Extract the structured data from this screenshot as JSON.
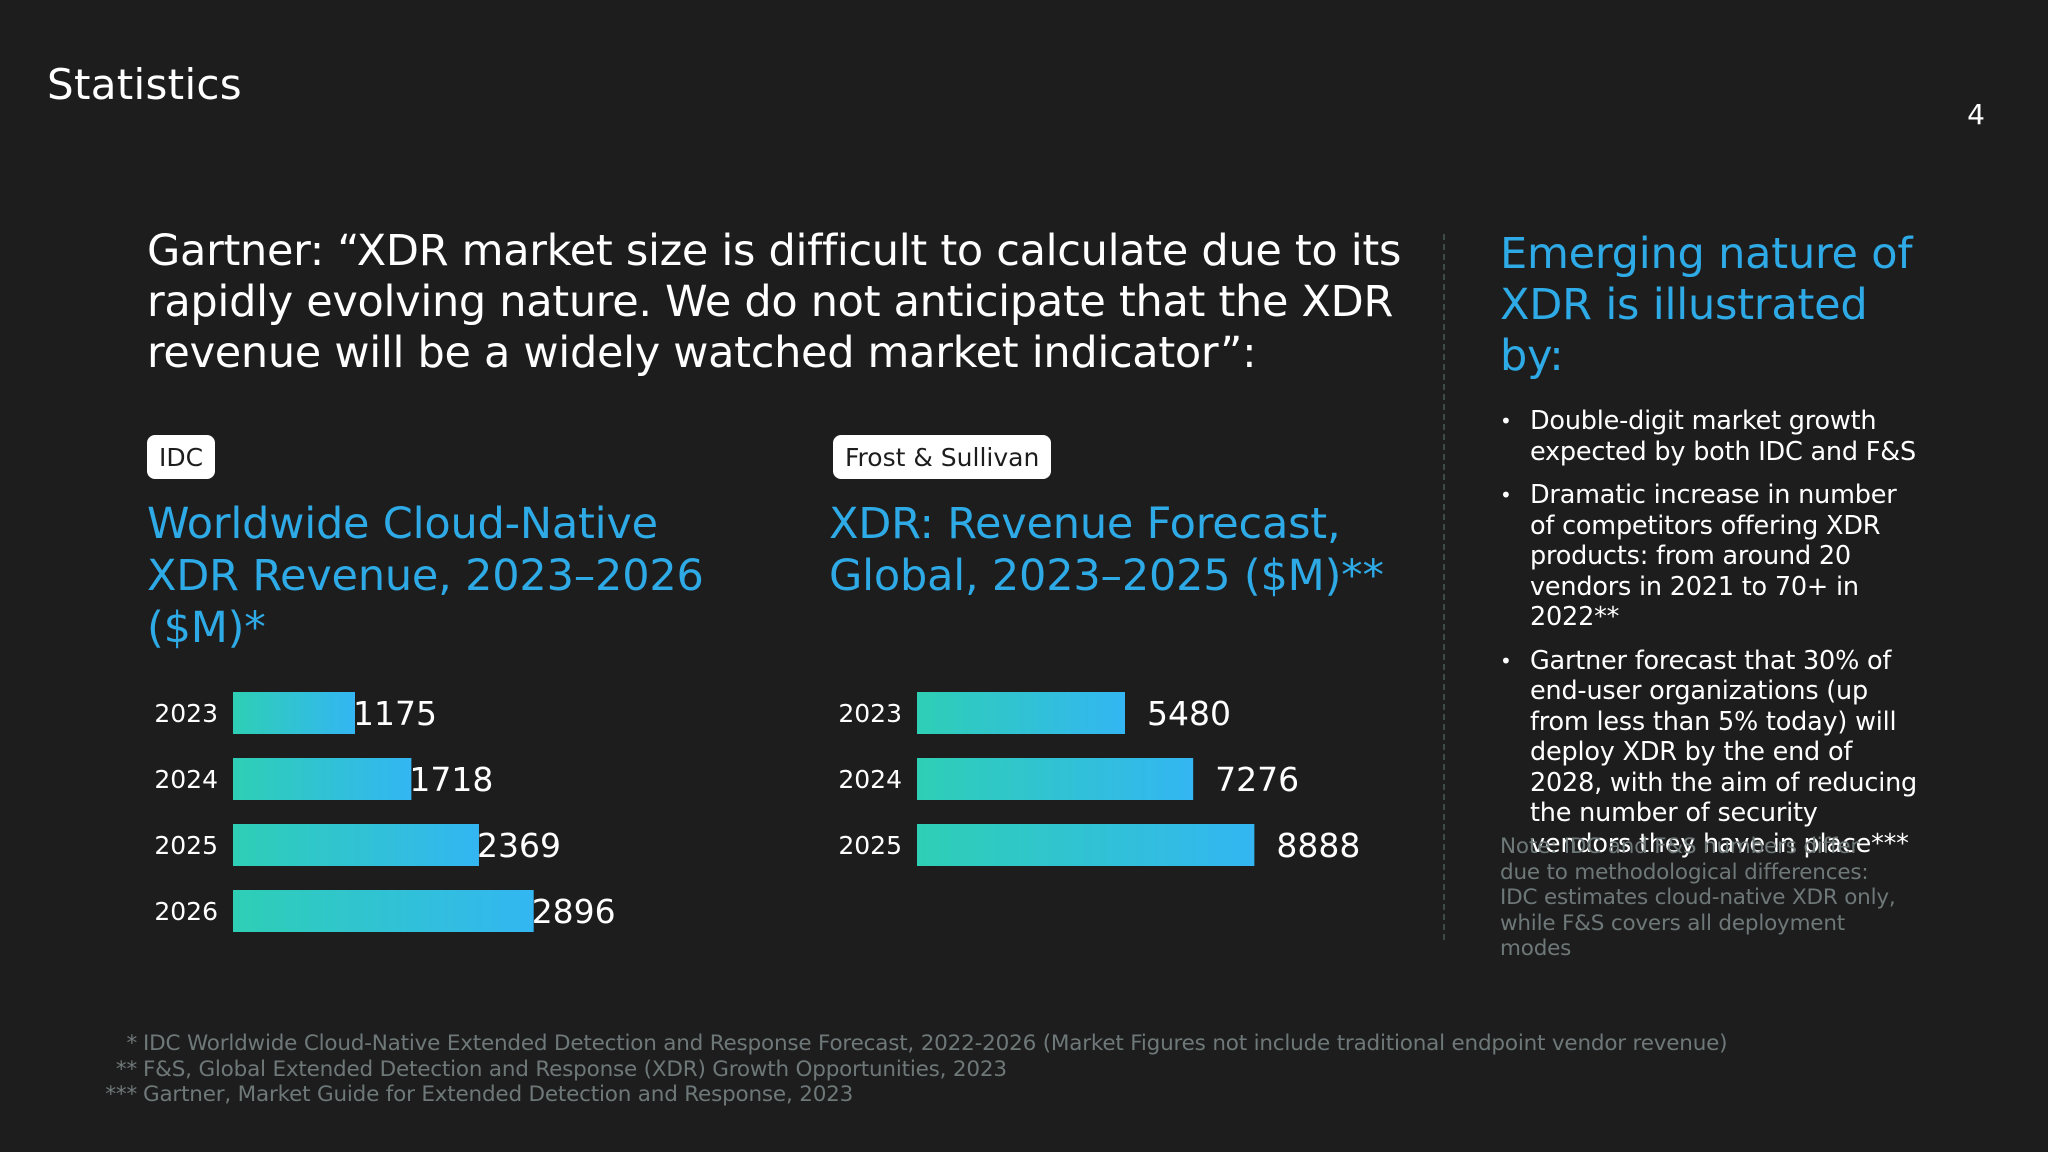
{
  "slide": {
    "title": "Statistics",
    "page_number": "4",
    "quote": "Gartner: “XDR market size is difficult to calculate due to its rapidly evolving nature. We do not anticipate that the XDR revenue will be a widely watched market indicator”:"
  },
  "colors": {
    "background": "#1d1d1d",
    "accent_blue": "#2eaae6",
    "bar_gradient_start": "#2ecfb5",
    "bar_gradient_end": "#33b6f2",
    "muted_text": "#6f7878"
  },
  "chart_data": [
    {
      "type": "bar",
      "orientation": "horizontal",
      "source_badge": "IDC",
      "title": "Worldwide Cloud-Native XDR Revenue, 2023–2026 ($M)*",
      "categories": [
        "2023",
        "2024",
        "2025",
        "2026"
      ],
      "values": [
        1175,
        1718,
        2369,
        2896
      ],
      "data_labels": [
        "1175",
        "1718",
        "2369",
        "2896"
      ],
      "grid": false
    },
    {
      "type": "bar",
      "orientation": "horizontal",
      "source_badge": "Frost & Sullivan",
      "title": "XDR: Revenue Forecast, Global, 2023–2025 ($M)**",
      "categories": [
        "2023",
        "2024",
        "2025"
      ],
      "values": [
        5480,
        7276,
        8888
      ],
      "data_labels": [
        "5480",
        "7276",
        "8888"
      ],
      "grid": false
    }
  ],
  "sidebar": {
    "title": "Emerging nature of XDR is illustrated by:",
    "bullets": [
      "Double-digit market growth expected by both IDC and F&S",
      "Dramatic increase in number of competitors offering XDR products: from around 20 vendors in 2021 to 70+ in 2022**",
      "Gartner forecast that 30% of end-user organizations (up from less than 5% today) will deploy XDR by the end of 2028, with the aim of reducing the number of security vendors they have in place***"
    ],
    "note": "Note: IDC and F&S numbers differ due to methodological differences: IDC estimates cloud-native XDR only, while F&S covers all deployment modes"
  },
  "footnotes": [
    {
      "mark": "*",
      "text": "IDC Worldwide Cloud-Native Extended Detection and Response Forecast, 2022-2026 (Market Figures not include traditional endpoint vendor revenue)"
    },
    {
      "mark": "**",
      "text": "F&S, Global Extended Detection and Response (XDR) Growth Opportunities, 2023"
    },
    {
      "mark": "***",
      "text": "Gartner, Market Guide for Extended Detection and Response, 2023"
    }
  ]
}
